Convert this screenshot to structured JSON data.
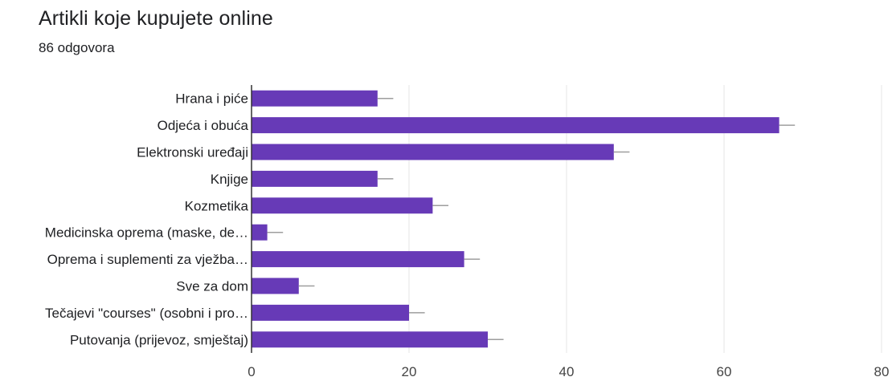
{
  "header": {
    "title": "Artikli koje kupujete online",
    "response_count": "86 odgovora"
  },
  "chart_data": {
    "type": "bar",
    "orientation": "horizontal",
    "title": "Artikli koje kupujete online",
    "categories": [
      "Hrana i piće",
      "Odjeća i obuća",
      "Elektronski uređaji",
      "Knjige",
      "Kozmetika",
      "Medicinska oprema (maske, de…",
      "Oprema i suplementi za vježba…",
      "Sve za dom",
      "Tečajevi \"courses\" (osobni i pro…",
      "Putovanja (prijevoz, smještaj)"
    ],
    "values": [
      16,
      67,
      46,
      16,
      23,
      2,
      27,
      6,
      20,
      30
    ],
    "error": [
      2,
      2,
      2,
      2,
      2,
      2,
      2,
      2,
      2,
      2
    ],
    "xlim": [
      0,
      80
    ],
    "ticks": [
      0,
      20,
      40,
      60,
      80
    ],
    "xlabel": "",
    "ylabel": "",
    "grid": true,
    "bar_color": "#673ab7",
    "error_color": "#9e9e9e"
  }
}
